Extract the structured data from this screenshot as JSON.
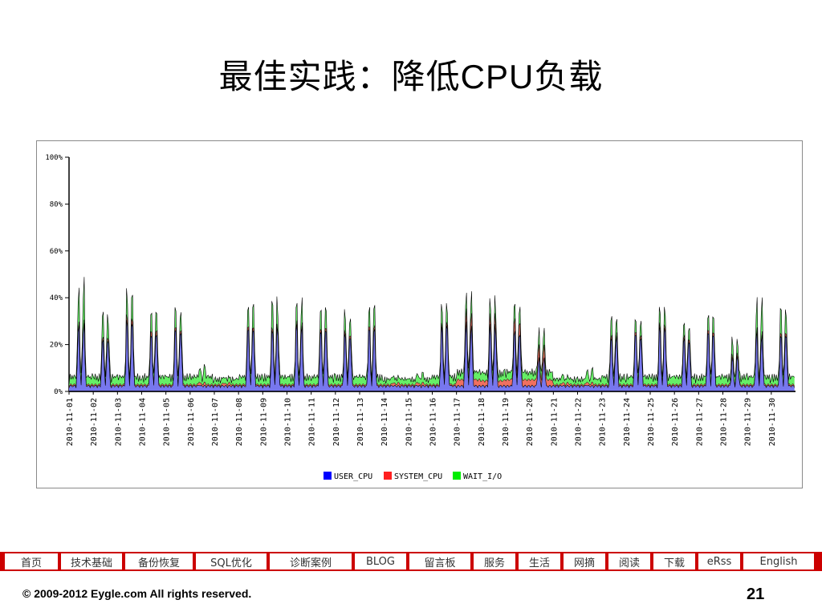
{
  "slide": {
    "title_prefix": "最佳实践：降低",
    "title_cpu": "CPU",
    "title_suffix": "负载"
  },
  "chart_data": {
    "type": "area",
    "stacked": true,
    "x_unit": "hour",
    "categories": [
      "2010-11-01",
      "2010-11-02",
      "2010-11-03",
      "2010-11-04",
      "2010-11-05",
      "2010-11-06",
      "2010-11-07",
      "2010-11-08",
      "2010-11-09",
      "2010-11-10",
      "2010-11-11",
      "2010-11-12",
      "2010-11-13",
      "2010-11-14",
      "2010-11-15",
      "2010-11-16",
      "2010-11-17",
      "2010-11-18",
      "2010-11-19",
      "2010-11-20",
      "2010-11-21",
      "2010-11-22",
      "2010-11-23",
      "2010-11-24",
      "2010-11-25",
      "2010-11-26",
      "2010-11-27",
      "2010-11-28",
      "2010-11-29",
      "2010-11-30"
    ],
    "ylim": [
      0,
      100
    ],
    "yticks": [
      "0%",
      "20%",
      "40%",
      "60%",
      "80%",
      "100%"
    ],
    "legend_position": "bottom",
    "series": [
      {
        "name": "USER_CPU",
        "color": "#0000ff",
        "daily_peak": [
          35,
          30,
          35,
          33,
          33,
          3,
          2,
          33,
          35,
          33,
          34,
          32,
          32,
          3,
          3,
          36,
          35,
          34,
          33,
          17,
          3,
          3,
          30,
          32,
          32,
          30,
          31,
          18,
          30,
          30
        ]
      },
      {
        "name": "SYSTEM_CPU",
        "color": "#ff2020",
        "daily_peak": [
          1,
          1,
          2,
          2,
          1,
          1,
          1,
          1,
          1,
          1,
          1,
          1,
          1,
          1,
          1,
          1,
          6,
          5,
          6,
          6,
          1,
          1,
          1,
          1,
          1,
          1,
          1,
          1,
          1,
          1
        ]
      },
      {
        "name": "WAIT_I/O",
        "color": "#00ee00",
        "daily_peak": [
          22,
          15,
          15,
          12,
          12,
          9,
          3,
          13,
          16,
          13,
          12,
          12,
          11,
          4,
          6,
          11,
          12,
          9,
          11,
          9,
          5,
          8,
          11,
          9,
          9,
          9,
          9,
          9,
          18,
          14
        ]
      }
    ],
    "legend": [
      "USER_CPU",
      "SYSTEM_CPU",
      "WAIT_I/O"
    ]
  },
  "nav": {
    "items": [
      "首页",
      "技术基础",
      "备份恢复",
      "SQL优化",
      "诊断案例",
      "BLOG",
      "留言板",
      "服务",
      "生活",
      "网摘",
      "阅读",
      "下载",
      "eRss",
      "English"
    ]
  },
  "footer": {
    "copyright": "© 2009-2012 Eygle.com All rights reserved.",
    "page_number": "21"
  }
}
